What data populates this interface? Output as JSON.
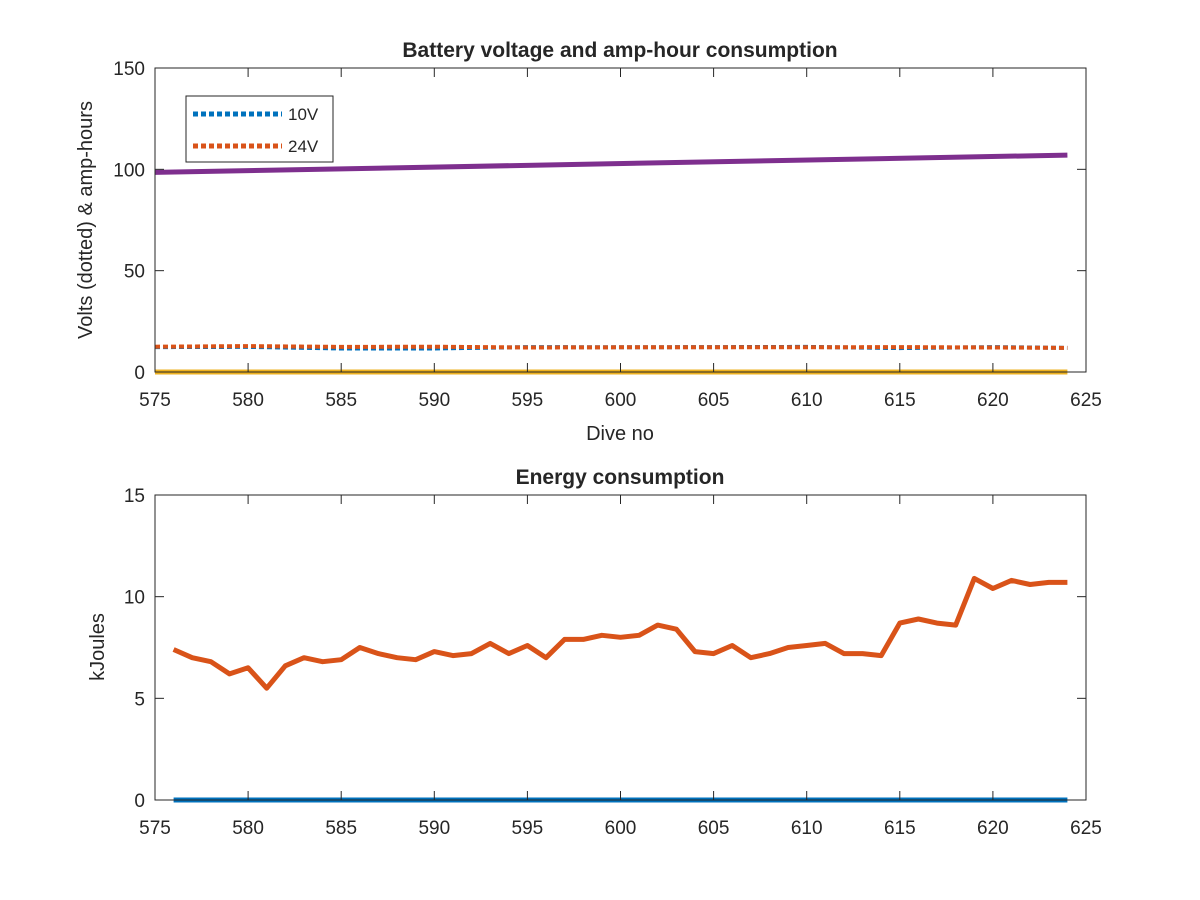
{
  "chart_data": [
    {
      "type": "line",
      "title": "Battery voltage and amp-hour consumption",
      "xlabel": "Dive no",
      "ylabel": "Volts (dotted) & amp-hours",
      "xlim": [
        575,
        625
      ],
      "ylim": [
        0,
        150
      ],
      "xticks": [
        575,
        580,
        585,
        590,
        595,
        600,
        605,
        610,
        615,
        620,
        625
      ],
      "yticks": [
        0,
        50,
        100,
        150
      ],
      "grid": false,
      "legend_placement": "top-left",
      "series": [
        {
          "name": "10V",
          "style": "dotted",
          "color": "#0072BD",
          "x": [
            575,
            580,
            585,
            590,
            595,
            600,
            605,
            610,
            615,
            620,
            624
          ],
          "y": [
            12.3,
            12.4,
            11.6,
            11.6,
            12.3,
            12.2,
            12.3,
            12.4,
            11.8,
            12.3,
            11.9
          ]
        },
        {
          "name": "24V",
          "style": "dotted",
          "color": "#D95319",
          "x": [
            575,
            580,
            585,
            590,
            595,
            600,
            605,
            610,
            615,
            620,
            624
          ],
          "y": [
            12.5,
            12.8,
            12.4,
            12.5,
            12.1,
            12.2,
            12.2,
            12.2,
            12.3,
            12.1,
            11.9
          ]
        },
        {
          "style": "solid",
          "color": "#7E2F8E",
          "x": [
            575,
            624
          ],
          "y": [
            98.5,
            107
          ]
        },
        {
          "style": "solid",
          "color": "#EDB120",
          "x": [
            575,
            624
          ],
          "y": [
            0,
            0
          ]
        }
      ]
    },
    {
      "type": "line",
      "title": "Energy consumption",
      "xlabel": "",
      "ylabel": "kJoules",
      "xlim": [
        575,
        625
      ],
      "ylim": [
        0,
        15
      ],
      "xticks": [
        575,
        580,
        585,
        590,
        595,
        600,
        605,
        610,
        615,
        620,
        625
      ],
      "yticks": [
        0,
        5,
        10,
        15
      ],
      "grid": false,
      "series": [
        {
          "style": "solid",
          "color": "#D95319",
          "x": [
            576,
            577,
            578,
            579,
            580,
            581,
            582,
            583,
            584,
            585,
            586,
            587,
            588,
            589,
            590,
            591,
            592,
            593,
            594,
            595,
            596,
            597,
            598,
            599,
            600,
            601,
            602,
            603,
            604,
            605,
            606,
            607,
            608,
            609,
            610,
            611,
            612,
            613,
            614,
            615,
            616,
            617,
            618,
            619,
            620,
            621,
            622,
            623,
            624
          ],
          "y": [
            7.4,
            7.0,
            6.8,
            6.2,
            6.5,
            5.5,
            6.6,
            7.0,
            6.8,
            6.9,
            7.5,
            7.2,
            7.0,
            6.9,
            7.3,
            7.1,
            7.2,
            7.7,
            7.2,
            7.6,
            7.0,
            7.9,
            7.9,
            8.1,
            8.0,
            8.1,
            8.6,
            8.4,
            7.3,
            7.2,
            7.6,
            7.0,
            7.2,
            7.5,
            7.6,
            7.7,
            7.2,
            7.2,
            7.1,
            8.7,
            8.9,
            8.7,
            8.6,
            10.9,
            10.4,
            10.8,
            10.6,
            10.7,
            10.7
          ]
        },
        {
          "style": "solid",
          "color": "#0072BD",
          "x": [
            576,
            624
          ],
          "y": [
            0,
            0
          ]
        }
      ]
    }
  ]
}
